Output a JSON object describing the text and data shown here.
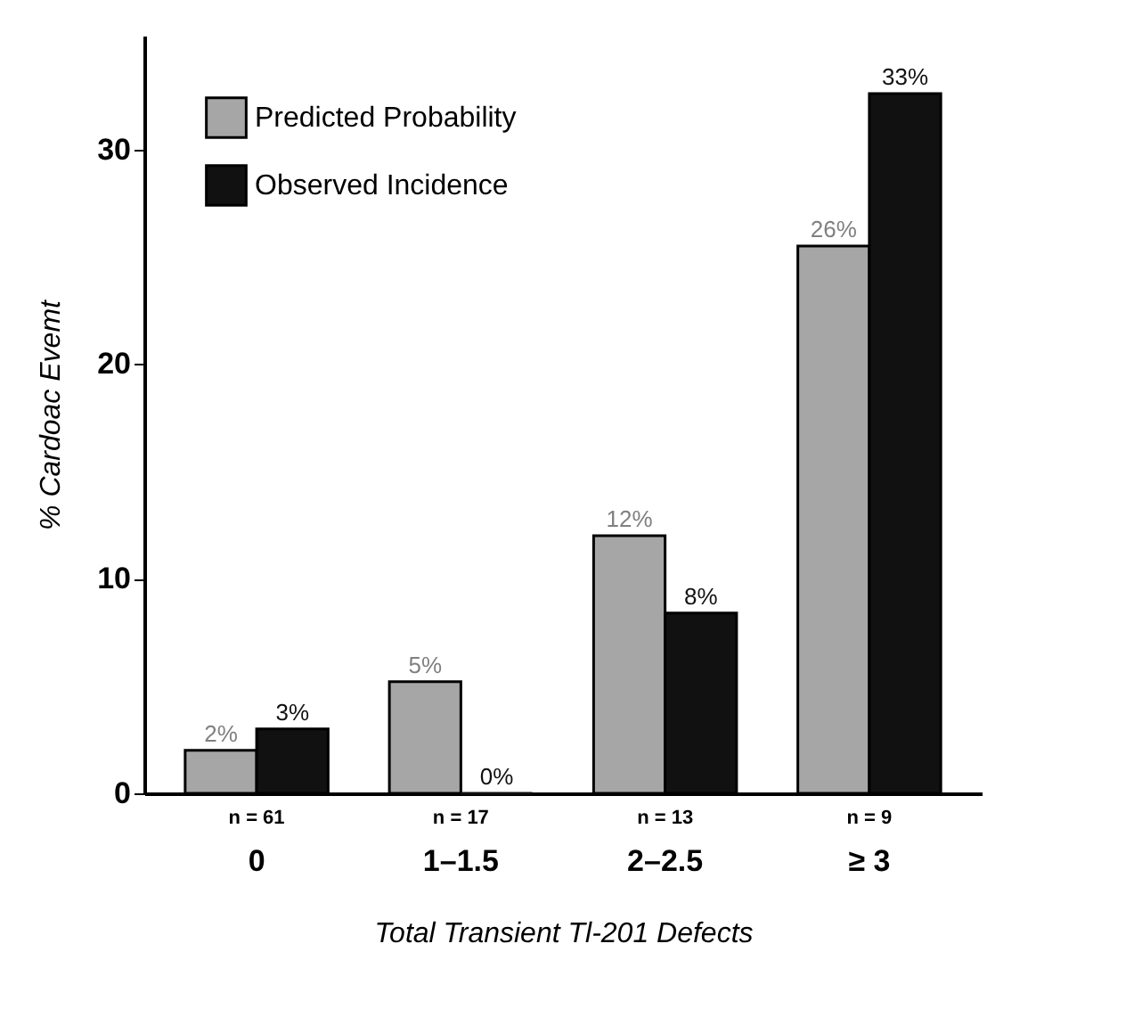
{
  "chart_data": {
    "type": "bar",
    "xlabel": "Total Transient Tl-201 Defects",
    "ylabel": "% Cardoac Evemt",
    "categories": [
      "0",
      "1–1.5",
      "2–2.5",
      "≥ 3"
    ],
    "series": [
      {
        "name": "Predicted Probability",
        "color": "#a6a6a6",
        "values": [
          2,
          5.2,
          12,
          25.5
        ],
        "value_labels": [
          "2%",
          "5%",
          "12%",
          "26%"
        ]
      },
      {
        "name": "Observed Incidence",
        "color": "#111111",
        "values": [
          3,
          0,
          8.4,
          32.6
        ],
        "value_labels": [
          "3%",
          "0%",
          "8%",
          "33%"
        ]
      }
    ],
    "ylim": [
      0,
      35.3
    ],
    "yticks": [
      0,
      10,
      20,
      30
    ],
    "grid": false,
    "legend": "top left",
    "annotations": [
      "n = 61",
      "n = 17",
      "n = 13",
      "n = 9"
    ]
  }
}
